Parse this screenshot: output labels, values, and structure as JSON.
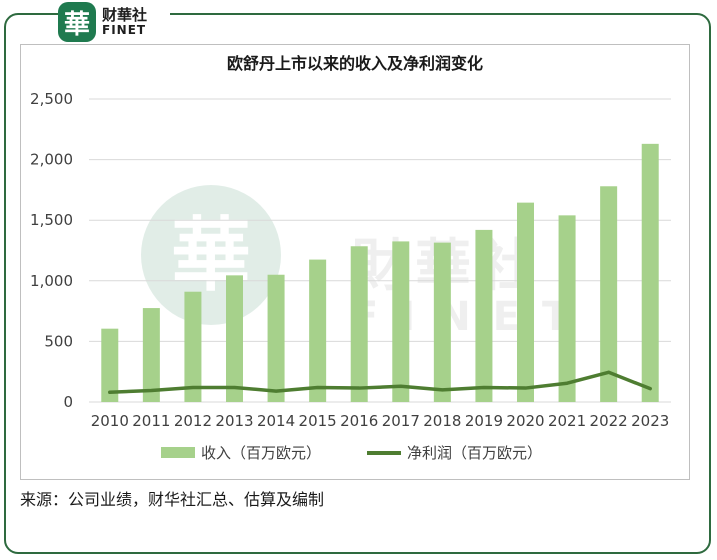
{
  "logo": {
    "badge_char": "華",
    "name_cn": "财華社",
    "name_en": "FINET"
  },
  "watermark": {
    "cn": "財華社",
    "en": "FINET"
  },
  "source_note": "来源：公司业绩，财华社汇总、估算及编制",
  "chart_data": {
    "type": "bar+line",
    "title": "欧舒丹上市以来的收入及净利润变化",
    "categories": [
      "2010",
      "2011",
      "2012",
      "2013",
      "2014",
      "2015",
      "2016",
      "2017",
      "2018",
      "2019",
      "2020",
      "2021",
      "2022",
      "2023"
    ],
    "ylim": [
      0,
      2500
    ],
    "yticks": [
      0,
      500,
      1000,
      1500,
      2000,
      2500
    ],
    "ytick_labels": [
      "0",
      "500",
      "1,000",
      "1,500",
      "2,000",
      "2,500"
    ],
    "grid": true,
    "legend_position": "bottom",
    "series": [
      {
        "name": "收入（百万欧元）",
        "kind": "bar",
        "color": "#a6d18b",
        "values": [
          605,
          775,
          910,
          1045,
          1050,
          1175,
          1285,
          1325,
          1315,
          1420,
          1645,
          1540,
          1780,
          2130
        ]
      },
      {
        "name": "净利润（百万欧元）",
        "kind": "line",
        "color": "#4e7d31",
        "values": [
          80,
          95,
          120,
          120,
          90,
          120,
          115,
          130,
          100,
          120,
          115,
          155,
          245,
          110
        ]
      }
    ]
  }
}
